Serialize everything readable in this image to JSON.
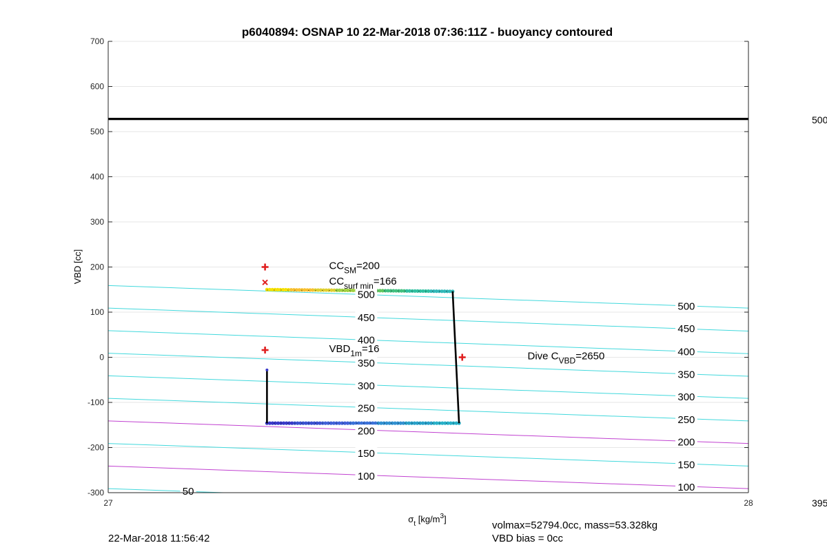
{
  "chart_data": {
    "type": "line",
    "title": "p6040894: OSNAP 10 22-Mar-2018 07:36:11Z - buoyancy contoured",
    "xlabel_base": "σ",
    "xlabel_sub": "t",
    "xlabel_unit": " [kg/m",
    "xlabel_sup": "3",
    "xlabel_close": "]",
    "ylabel": "VBD [cc]",
    "xlim": [
      27,
      28
    ],
    "ylim": [
      -300,
      700
    ],
    "xticks": [
      {
        "value": 27,
        "label": "27"
      },
      {
        "value": 28,
        "label": "28"
      }
    ],
    "yticks": [
      {
        "value": 700,
        "label": "700"
      },
      {
        "value": 600,
        "label": "600"
      },
      {
        "value": 500,
        "label": "500"
      },
      {
        "value": 400,
        "label": "400"
      },
      {
        "value": 300,
        "label": "300"
      },
      {
        "value": 200,
        "label": "200"
      },
      {
        "value": 100,
        "label": "100"
      },
      {
        "value": 0,
        "label": "0"
      },
      {
        "value": -100,
        "label": "-100"
      },
      {
        "value": -200,
        "label": "-200"
      },
      {
        "value": -300,
        "label": "-300"
      }
    ],
    "grid": true,
    "max_line": {
      "y": 528,
      "color": "#000000"
    },
    "contours": [
      {
        "label": "500",
        "y_left": 159,
        "y_right": 109,
        "color": "#40d8dc",
        "label_mid": [
          27.403,
          139
        ],
        "label_right": [
          27.903,
          113
        ]
      },
      {
        "label": "450",
        "y_left": 109,
        "y_right": 58,
        "color": "#40d8dc",
        "label_mid": [
          27.403,
          88
        ],
        "label_right": [
          27.903,
          63
        ]
      },
      {
        "label": "400",
        "y_left": 59,
        "y_right": 8,
        "color": "#40d8dc",
        "label_mid": [
          27.403,
          38
        ],
        "label_right": [
          27.903,
          12
        ]
      },
      {
        "label": "350",
        "y_left": 9,
        "y_right": -42,
        "color": "#40d8dc",
        "label_mid": [
          27.403,
          -13
        ],
        "label_right": [
          27.903,
          -38
        ]
      },
      {
        "label": "300",
        "y_left": -41,
        "y_right": -91,
        "color": "#40d8dc",
        "label_mid": [
          27.403,
          -63
        ],
        "label_right": [
          27.903,
          -88
        ]
      },
      {
        "label": "250",
        "y_left": -91,
        "y_right": -141,
        "color": "#40d8dc",
        "label_mid": [
          27.403,
          -113
        ],
        "label_right": [
          27.903,
          -138
        ]
      },
      {
        "label": "200",
        "y_left": -141,
        "y_right": -191,
        "color": "#c040d0",
        "label_mid": [
          27.403,
          -163
        ],
        "label_right": [
          27.903,
          -188
        ]
      },
      {
        "label": "150",
        "y_left": -191,
        "y_right": -241,
        "color": "#40d8dc",
        "label_mid": [
          27.403,
          -213
        ],
        "label_right": [
          27.903,
          -238
        ]
      },
      {
        "label": "100",
        "y_left": -241,
        "y_right": -291,
        "color": "#c040d0",
        "label_mid": [
          27.403,
          -263
        ],
        "label_right": [
          27.903,
          -288
        ]
      },
      {
        "label": "50",
        "y_left": -291,
        "y_right": -341,
        "color": "#40d8dc",
        "label_mid": [
          27.125,
          -297
        ],
        "label_right": null
      }
    ],
    "dive_profile": {
      "color": "#000000",
      "descent_top": {
        "x": [
          27.248,
          27.538
        ],
        "y": [
          149,
          146
        ]
      },
      "descent_vertical": {
        "x": [
          27.538,
          27.548
        ],
        "y": [
          146,
          -146
        ]
      },
      "ascent_bottom": {
        "x": [
          27.248,
          27.548
        ],
        "y": [
          -146,
          -146
        ]
      },
      "ascent_vertical": {
        "x": [
          27.248,
          27.248
        ],
        "y": [
          -146,
          -28
        ]
      }
    },
    "scatter_top": {
      "x_start": 27.248,
      "x_end": 27.538,
      "y_start": 150,
      "y_end": 146,
      "colors": [
        "#f5e000",
        "#f8c030",
        "#e0d030",
        "#a0d040",
        "#60c860",
        "#40c080",
        "#30c0a0",
        "#30b8b8"
      ]
    },
    "scatter_bottom": {
      "x_start": 27.248,
      "x_end": 27.548,
      "y_start": -146,
      "y_end": -146,
      "colors": [
        "#3838c8",
        "#3a50d0",
        "#4060d8",
        "#3a70d8",
        "#3090d0",
        "#28a0c8",
        "#28b0c8"
      ]
    },
    "markers": [
      {
        "type": "plus",
        "x": 27.245,
        "y": 200,
        "color": "#e02020"
      },
      {
        "type": "x",
        "x": 27.245,
        "y": 166,
        "color": "#e02020"
      },
      {
        "type": "plus",
        "x": 27.245,
        "y": 16,
        "color": "#e02020"
      },
      {
        "type": "plus",
        "x": 27.553,
        "y": 0,
        "color": "#e02020"
      }
    ],
    "annotations": [
      {
        "base": "CC",
        "sub": "SM",
        "rest": "=200",
        "x": 27.345,
        "y": 200
      },
      {
        "base": "CC",
        "sub": "surf min",
        "rest": "=166",
        "x": 27.345,
        "y": 166
      },
      {
        "base": "VBD",
        "sub": "1m",
        "rest": "=16",
        "x": 27.345,
        "y": 16
      },
      {
        "base": "Dive C",
        "sub": "VBD",
        "rest": "=2650",
        "x": 27.655,
        "y": 0
      }
    ]
  },
  "footer": {
    "timestamp": "22-Mar-2018 11:56:42",
    "volmax": "volmax=52794.0cc, mass=53.328kg",
    "vbd_bias": "VBD bias = 0cc"
  },
  "edge_labels": {
    "top": "500",
    "bottom": "395"
  }
}
